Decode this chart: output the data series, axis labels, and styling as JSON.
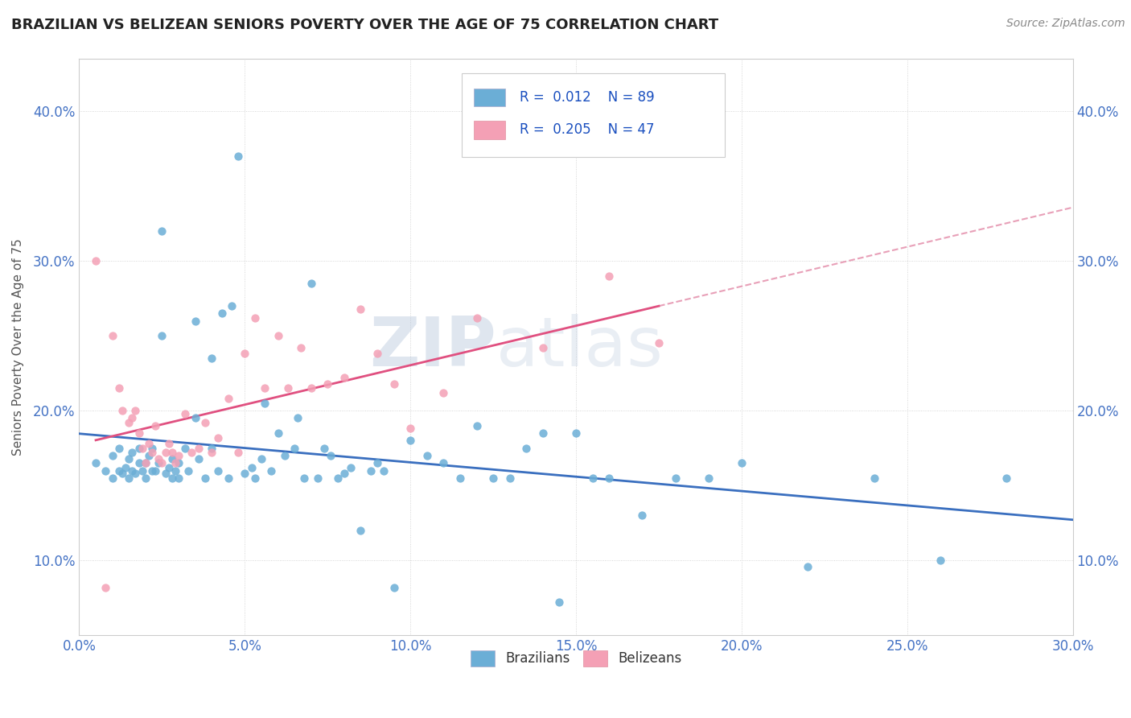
{
  "title": "BRAZILIAN VS BELIZEAN SENIORS POVERTY OVER THE AGE OF 75 CORRELATION CHART",
  "source": "Source: ZipAtlas.com",
  "xlim": [
    0.0,
    0.3
  ],
  "ylim": [
    0.05,
    0.435
  ],
  "xticks": [
    0.0,
    0.05,
    0.1,
    0.15,
    0.2,
    0.25,
    0.3
  ],
  "xlabels": [
    "0.0%",
    "5.0%",
    "10.0%",
    "15.0%",
    "20.0%",
    "25.0%",
    "30.0%"
  ],
  "yticks": [
    0.1,
    0.2,
    0.3,
    0.4
  ],
  "ylabels": [
    "10.0%",
    "20.0%",
    "30.0%",
    "40.0%"
  ],
  "color_brazilian": "#6baed6",
  "color_belizean": "#f4a0b5",
  "color_trend_brazilian": "#3a6fbf",
  "color_trend_belizean": "#e05080",
  "color_trend_dashed": "#e8a0b8",
  "watermark": "ZIPatlas",
  "legend_r1": "R =  0.012    N = 89",
  "legend_r2": "R =  0.205    N = 47",
  "brazilian_x": [
    0.005,
    0.008,
    0.01,
    0.01,
    0.012,
    0.012,
    0.013,
    0.014,
    0.015,
    0.015,
    0.016,
    0.016,
    0.017,
    0.018,
    0.018,
    0.019,
    0.02,
    0.02,
    0.021,
    0.022,
    0.022,
    0.023,
    0.024,
    0.025,
    0.025,
    0.026,
    0.027,
    0.028,
    0.028,
    0.029,
    0.03,
    0.03,
    0.032,
    0.033,
    0.035,
    0.035,
    0.036,
    0.038,
    0.04,
    0.04,
    0.042,
    0.043,
    0.045,
    0.046,
    0.048,
    0.05,
    0.052,
    0.053,
    0.055,
    0.056,
    0.058,
    0.06,
    0.062,
    0.065,
    0.066,
    0.068,
    0.07,
    0.072,
    0.074,
    0.076,
    0.078,
    0.08,
    0.082,
    0.085,
    0.088,
    0.09,
    0.092,
    0.095,
    0.1,
    0.105,
    0.11,
    0.115,
    0.12,
    0.125,
    0.13,
    0.135,
    0.14,
    0.145,
    0.15,
    0.155,
    0.16,
    0.17,
    0.18,
    0.19,
    0.2,
    0.22,
    0.24,
    0.26,
    0.28
  ],
  "brazilian_y": [
    0.165,
    0.16,
    0.155,
    0.17,
    0.16,
    0.175,
    0.158,
    0.162,
    0.155,
    0.168,
    0.16,
    0.172,
    0.158,
    0.165,
    0.175,
    0.16,
    0.155,
    0.165,
    0.17,
    0.16,
    0.175,
    0.16,
    0.165,
    0.25,
    0.32,
    0.158,
    0.162,
    0.155,
    0.168,
    0.16,
    0.155,
    0.165,
    0.175,
    0.16,
    0.195,
    0.26,
    0.168,
    0.155,
    0.175,
    0.235,
    0.16,
    0.265,
    0.155,
    0.27,
    0.37,
    0.158,
    0.162,
    0.155,
    0.168,
    0.205,
    0.16,
    0.185,
    0.17,
    0.175,
    0.195,
    0.155,
    0.285,
    0.155,
    0.175,
    0.17,
    0.155,
    0.158,
    0.162,
    0.12,
    0.16,
    0.165,
    0.16,
    0.082,
    0.18,
    0.17,
    0.165,
    0.155,
    0.19,
    0.155,
    0.155,
    0.175,
    0.185,
    0.072,
    0.185,
    0.155,
    0.155,
    0.13,
    0.155,
    0.155,
    0.165,
    0.096,
    0.155,
    0.1,
    0.155
  ],
  "belizean_x": [
    0.005,
    0.008,
    0.01,
    0.012,
    0.013,
    0.015,
    0.016,
    0.017,
    0.018,
    0.019,
    0.02,
    0.021,
    0.022,
    0.023,
    0.024,
    0.025,
    0.026,
    0.027,
    0.028,
    0.029,
    0.03,
    0.032,
    0.034,
    0.036,
    0.038,
    0.04,
    0.042,
    0.045,
    0.048,
    0.05,
    0.053,
    0.056,
    0.06,
    0.063,
    0.067,
    0.07,
    0.075,
    0.08,
    0.085,
    0.09,
    0.095,
    0.1,
    0.11,
    0.12,
    0.14,
    0.16,
    0.175
  ],
  "belizean_y": [
    0.3,
    0.082,
    0.25,
    0.215,
    0.2,
    0.192,
    0.195,
    0.2,
    0.185,
    0.175,
    0.165,
    0.178,
    0.172,
    0.19,
    0.168,
    0.165,
    0.172,
    0.178,
    0.172,
    0.165,
    0.17,
    0.198,
    0.172,
    0.175,
    0.192,
    0.172,
    0.182,
    0.208,
    0.172,
    0.238,
    0.262,
    0.215,
    0.25,
    0.215,
    0.242,
    0.215,
    0.218,
    0.222,
    0.268,
    0.238,
    0.218,
    0.188,
    0.212,
    0.262,
    0.242,
    0.29,
    0.245
  ]
}
